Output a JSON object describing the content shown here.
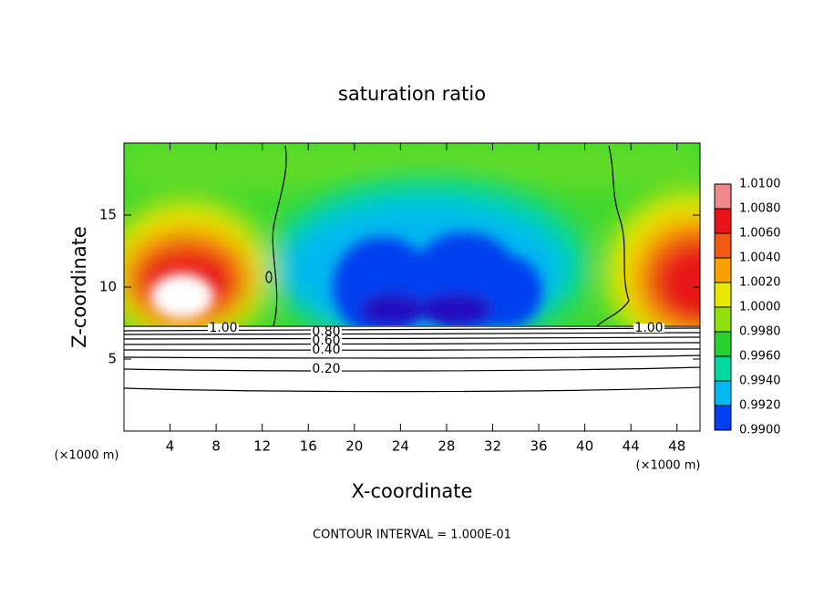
{
  "chart_data": {
    "type": "contour",
    "title": "saturation ratio",
    "x_label": "X-coordinate",
    "y_label": "Z-coordinate",
    "x_unit": "(×1000 m)",
    "footer": "CONTOUR INTERVAL = 1.000E-01",
    "xlim": [
      0,
      50
    ],
    "ylim": [
      0,
      20
    ],
    "xticks": [
      4,
      8,
      12,
      16,
      20,
      24,
      28,
      32,
      36,
      40,
      44,
      48
    ],
    "yticks": [
      5,
      10,
      15
    ],
    "contour_labels": [
      "1.00",
      "0.80",
      "0.60",
      "0.40",
      "0.20",
      "1.00"
    ],
    "colorbar": {
      "lim": [
        0.99,
        1.01
      ],
      "ticks": [
        {
          "value": 1.01,
          "label": "1.0100"
        },
        {
          "value": 1.008,
          "label": "1.0080"
        },
        {
          "value": 1.006,
          "label": "1.0060"
        },
        {
          "value": 1.004,
          "label": "1.0040"
        },
        {
          "value": 1.002,
          "label": "1.0020"
        },
        {
          "value": 1.0,
          "label": "1.0000"
        },
        {
          "value": 0.998,
          "label": "0.9980"
        },
        {
          "value": 0.996,
          "label": "0.9960"
        },
        {
          "value": 0.994,
          "label": "0.9940"
        },
        {
          "value": 0.992,
          "label": "0.9920"
        },
        {
          "value": 0.99,
          "label": "0.9900"
        }
      ],
      "colors": [
        "#f08a8a",
        "#e81418",
        "#f05a10",
        "#f8a000",
        "#e8e800",
        "#90e010",
        "#28d030",
        "#00d8a0",
        "#00b8f0",
        "#0040f0",
        "#3010a8"
      ]
    }
  }
}
